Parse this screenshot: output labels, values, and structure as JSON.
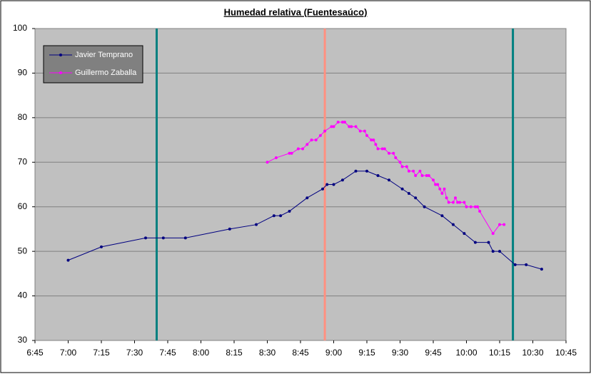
{
  "chart_data": {
    "type": "line",
    "title": "Humedad relativa (Fuentesaúco)",
    "xlim": [
      405,
      645
    ],
    "ylim": [
      30,
      100
    ],
    "xticks": [
      {
        "value": 405,
        "label": "6:45"
      },
      {
        "value": 420,
        "label": "7:00"
      },
      {
        "value": 435,
        "label": "7:15"
      },
      {
        "value": 450,
        "label": "7:30"
      },
      {
        "value": 465,
        "label": "7:45"
      },
      {
        "value": 480,
        "label": "8:00"
      },
      {
        "value": 495,
        "label": "8:15"
      },
      {
        "value": 510,
        "label": "8:30"
      },
      {
        "value": 525,
        "label": "8:45"
      },
      {
        "value": 540,
        "label": "9:00"
      },
      {
        "value": 555,
        "label": "9:15"
      },
      {
        "value": 570,
        "label": "9:30"
      },
      {
        "value": 585,
        "label": "9:45"
      },
      {
        "value": 600,
        "label": "10:00"
      },
      {
        "value": 615,
        "label": "10:15"
      },
      {
        "value": 630,
        "label": "10:30"
      },
      {
        "value": 645,
        "label": "10:45"
      }
    ],
    "yticks": [
      30,
      40,
      50,
      60,
      70,
      80,
      90,
      100
    ],
    "grid": true,
    "legend": "top-left",
    "vlines": [
      {
        "x": 460,
        "color": "#008080"
      },
      {
        "x": 536,
        "color": "#ff9080"
      },
      {
        "x": 621,
        "color": "#008080"
      }
    ],
    "series": [
      {
        "name": "Javier Temprano",
        "color": "#000080",
        "x": [
          420,
          435,
          455,
          463,
          473,
          493,
          505,
          513,
          516,
          520,
          528,
          535,
          537,
          540,
          544,
          550,
          555,
          560,
          565,
          571,
          574,
          577,
          581,
          589,
          594,
          599,
          604,
          610,
          612,
          615,
          622,
          627,
          634
        ],
        "values": [
          48,
          51,
          53,
          53,
          53,
          55,
          56,
          58,
          58,
          59,
          62,
          64,
          65,
          65,
          66,
          68,
          68,
          67,
          66,
          64,
          63,
          62,
          60,
          58,
          56,
          54,
          52,
          52,
          50,
          50,
          47,
          47,
          46
        ]
      },
      {
        "name": "Guillermo Zaballa",
        "color": "#ff00ff",
        "x": [
          510,
          514,
          520,
          521,
          524,
          526,
          528,
          530,
          532,
          534,
          536,
          539,
          540,
          542,
          544,
          545,
          547,
          548,
          550,
          552,
          554,
          555,
          557,
          558,
          559,
          560,
          562,
          563,
          565,
          567,
          568,
          570,
          571,
          573,
          574,
          576,
          577,
          579,
          580,
          582,
          583,
          585,
          586,
          587,
          588,
          589,
          590,
          591,
          592,
          594,
          595,
          596,
          597,
          599,
          600,
          602,
          604,
          605,
          606,
          612,
          615,
          617
        ],
        "values": [
          70,
          71,
          72,
          72,
          73,
          73,
          74,
          75,
          75,
          76,
          77,
          78,
          78,
          79,
          79,
          79,
          78,
          78,
          78,
          77,
          77,
          76,
          75,
          75,
          74,
          73,
          73,
          73,
          72,
          72,
          71,
          70,
          69,
          69,
          68,
          68,
          67,
          68,
          67,
          67,
          67,
          66,
          65,
          65,
          64,
          63,
          64,
          62,
          61,
          61,
          62,
          61,
          61,
          61,
          60,
          60,
          60,
          60,
          59,
          54,
          56,
          56
        ]
      }
    ]
  }
}
